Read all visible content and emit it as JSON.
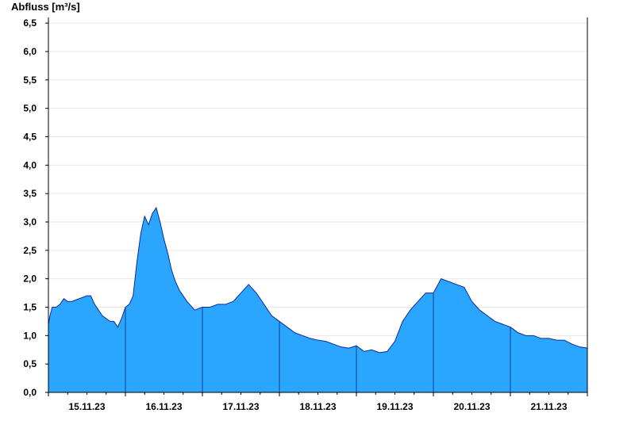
{
  "chart_data": {
    "type": "area",
    "ylabel": "Abfluss [m³/s]",
    "xlabel": "",
    "ylim": [
      0,
      6.6
    ],
    "y_ticks": [
      "0,0",
      "0,5",
      "1,0",
      "1,5",
      "2,0",
      "2,5",
      "3,0",
      "3,5",
      "4,0",
      "4,5",
      "5,0",
      "5,5",
      "6,0",
      "6,5"
    ],
    "y_tick_values": [
      0,
      0.5,
      1.0,
      1.5,
      2.0,
      2.5,
      3.0,
      3.5,
      4.0,
      4.5,
      5.0,
      5.5,
      6.0,
      6.5
    ],
    "x_tick_labels": [
      "15.11.23",
      "16.11.23",
      "17.11.23",
      "18.11.23",
      "19.11.23",
      "20.11.23",
      "21.11.23"
    ],
    "xlim": [
      0,
      7.0
    ],
    "grid": true,
    "fill_color": "#2aa6ff",
    "line_color": "#0b2a9c",
    "series": [
      {
        "x": [
          0,
          0.02,
          0.05,
          0.1,
          0.15,
          0.2,
          0.25,
          0.3,
          0.4,
          0.5,
          0.55,
          0.6,
          0.65,
          0.7,
          0.75,
          0.8,
          0.85,
          0.9,
          0.95,
          1.0,
          1.05,
          1.1,
          1.15,
          1.2,
          1.25,
          1.3,
          1.35,
          1.4,
          1.45,
          1.5,
          1.55,
          1.6,
          1.65,
          1.7,
          1.75,
          1.8,
          1.9,
          2.0,
          2.1,
          2.2,
          2.3,
          2.4,
          2.5,
          2.6,
          2.7,
          2.8,
          2.9,
          3.0,
          3.1,
          3.2,
          3.3,
          3.4,
          3.5,
          3.6,
          3.7,
          3.8,
          3.9,
          4.0,
          4.1,
          4.2,
          4.3,
          4.4,
          4.5,
          4.6,
          4.7,
          4.8,
          4.9,
          5.0,
          5.1,
          5.2,
          5.3,
          5.4,
          5.5,
          5.6,
          5.7,
          5.8,
          5.9,
          6.0,
          6.1,
          6.2,
          6.3,
          6.4,
          6.5,
          6.6,
          6.7,
          6.8,
          6.9,
          7.0
        ],
        "y": [
          1.2,
          1.35,
          1.5,
          1.5,
          1.55,
          1.65,
          1.6,
          1.6,
          1.65,
          1.7,
          1.7,
          1.55,
          1.45,
          1.35,
          1.3,
          1.25,
          1.25,
          1.15,
          1.3,
          1.5,
          1.55,
          1.7,
          2.3,
          2.8,
          3.1,
          2.95,
          3.15,
          3.25,
          3.0,
          2.7,
          2.45,
          2.15,
          1.95,
          1.8,
          1.7,
          1.6,
          1.45,
          1.5,
          1.5,
          1.55,
          1.55,
          1.6,
          1.75,
          1.9,
          1.75,
          1.55,
          1.35,
          1.25,
          1.15,
          1.05,
          1.0,
          0.95,
          0.92,
          0.9,
          0.85,
          0.8,
          0.78,
          0.82,
          0.72,
          0.75,
          0.7,
          0.72,
          0.9,
          1.25,
          1.45,
          1.6,
          1.75,
          1.75,
          2.0,
          1.95,
          1.9,
          1.85,
          1.6,
          1.45,
          1.35,
          1.25,
          1.2,
          1.15,
          1.05,
          1.0,
          1.0,
          0.95,
          0.95,
          0.92,
          0.92,
          0.85,
          0.8,
          0.78
        ]
      }
    ]
  }
}
